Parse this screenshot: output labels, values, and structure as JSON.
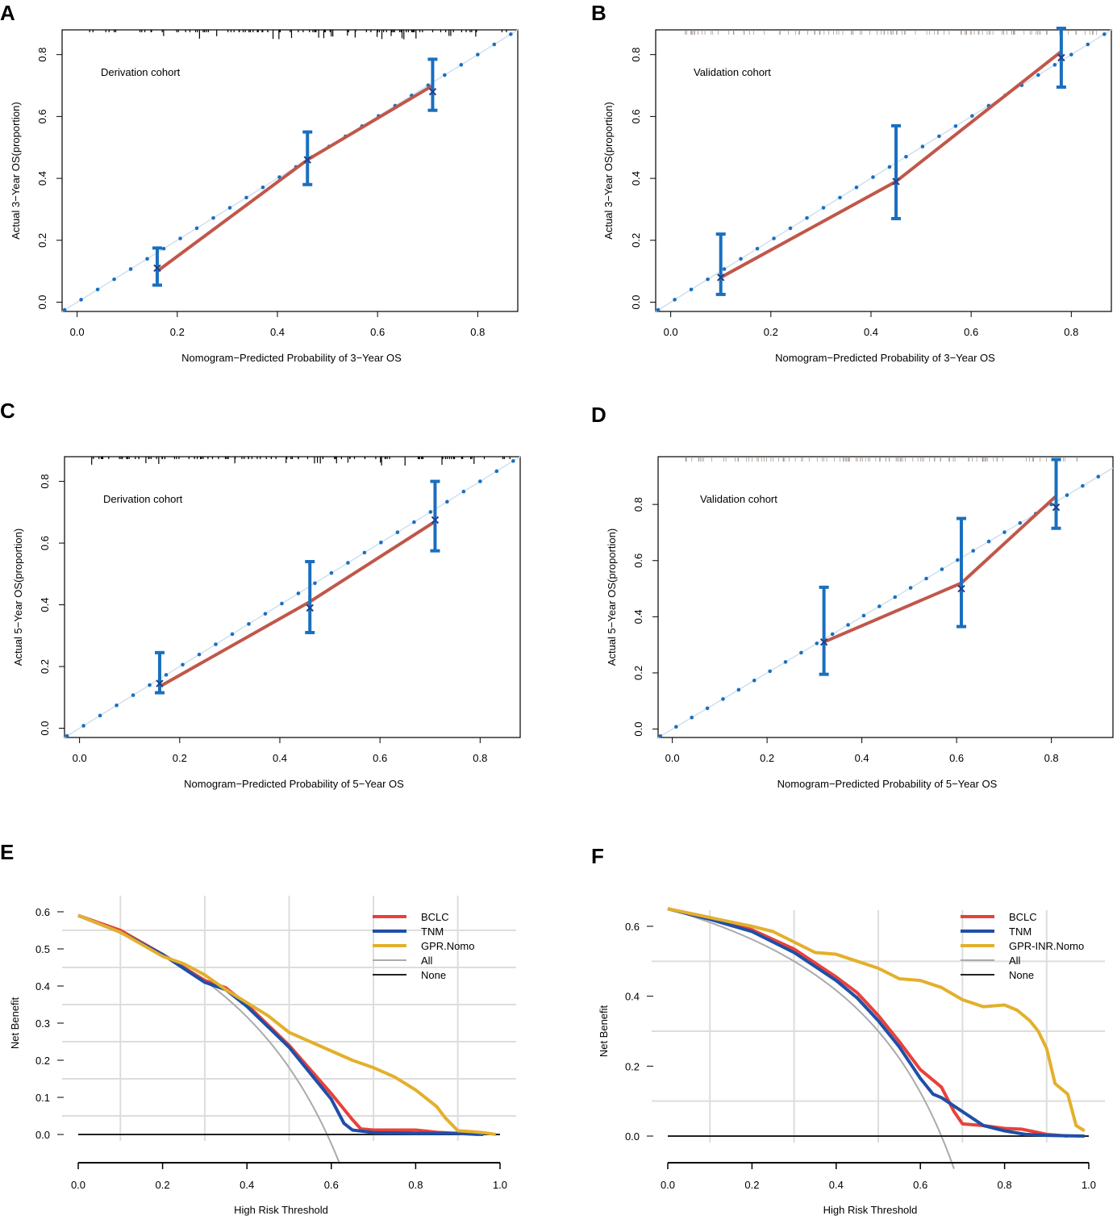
{
  "figure": {
    "panel_letters": [
      "A",
      "B",
      "C",
      "D",
      "E",
      "F"
    ]
  },
  "chart_data": [
    {
      "panel": "A",
      "type": "scatter",
      "subtype": "calibration",
      "annotation": "Derivation cohort",
      "xlabel": "Nomogram−Predicted Probability of 3−Year OS",
      "ylabel": "Actual 3−Year OS(proportion)",
      "xlim": [
        -0.03,
        0.88
      ],
      "ylim": [
        -0.03,
        0.88
      ],
      "xticks": [
        0.0,
        0.2,
        0.4,
        0.6,
        0.8
      ],
      "xtick_labels": [
        "0.0",
        "0.2",
        "0.4",
        "0.6",
        "0.8"
      ],
      "yticks": [
        0.0,
        0.2,
        0.4,
        0.6,
        0.8
      ],
      "ytick_labels": [
        "0.0",
        "0.2",
        "0.4",
        "0.6",
        "0.8"
      ],
      "ideal_line": {
        "from": [
          -0.03,
          -0.03
        ],
        "to": [
          0.88,
          0.88
        ]
      },
      "points": [
        {
          "x": 0.16,
          "y": 0.11,
          "lower": 0.055,
          "upper": 0.175
        },
        {
          "x": 0.46,
          "y": 0.46,
          "lower": 0.38,
          "upper": 0.55
        },
        {
          "x": 0.71,
          "y": 0.68,
          "lower": 0.62,
          "upper": 0.785
        }
      ],
      "apparent_line": [
        [
          0.16,
          0.1
        ],
        [
          0.46,
          0.46
        ],
        [
          0.71,
          0.7
        ]
      ],
      "rug": "black"
    },
    {
      "panel": "B",
      "type": "scatter",
      "subtype": "calibration",
      "annotation": "Validation cohort",
      "xlabel": "Nomogram−Predicted Probability of 3−Year OS",
      "ylabel": "Actual 3−Year OS(proportion)",
      "xlim": [
        -0.03,
        0.88
      ],
      "ylim": [
        -0.03,
        0.88
      ],
      "xticks": [
        0.0,
        0.2,
        0.4,
        0.6,
        0.8
      ],
      "xtick_labels": [
        "0.0",
        "0.2",
        "0.4",
        "0.6",
        "0.8"
      ],
      "yticks": [
        0.0,
        0.2,
        0.4,
        0.6,
        0.8
      ],
      "ytick_labels": [
        "0.0",
        "0.2",
        "0.4",
        "0.6",
        "0.8"
      ],
      "ideal_line": {
        "from": [
          -0.03,
          -0.03
        ],
        "to": [
          0.88,
          0.88
        ]
      },
      "points": [
        {
          "x": 0.1,
          "y": 0.08,
          "lower": 0.025,
          "upper": 0.22
        },
        {
          "x": 0.45,
          "y": 0.39,
          "lower": 0.27,
          "upper": 0.57
        },
        {
          "x": 0.78,
          "y": 0.79,
          "lower": 0.695,
          "upper": 0.885
        }
      ],
      "apparent_line": [
        [
          0.1,
          0.08
        ],
        [
          0.45,
          0.39
        ],
        [
          0.78,
          0.81
        ]
      ],
      "rug": "gray"
    },
    {
      "panel": "C",
      "type": "scatter",
      "subtype": "calibration",
      "annotation": "Derivation cohort",
      "xlabel": "Nomogram−Predicted Probability of 5−Year OS",
      "ylabel": "Actual 5−Year OS(proportion)",
      "xlim": [
        -0.03,
        0.88
      ],
      "ylim": [
        -0.03,
        0.88
      ],
      "xticks": [
        0.0,
        0.2,
        0.4,
        0.6,
        0.8
      ],
      "xtick_labels": [
        "0.0",
        "0.2",
        "0.4",
        "0.6",
        "0.8"
      ],
      "yticks": [
        0.0,
        0.2,
        0.4,
        0.6,
        0.8
      ],
      "ytick_labels": [
        "0.0",
        "0.2",
        "0.4",
        "0.6",
        "0.8"
      ],
      "ideal_line": {
        "from": [
          -0.03,
          -0.03
        ],
        "to": [
          0.88,
          0.88
        ]
      },
      "points": [
        {
          "x": 0.16,
          "y": 0.145,
          "lower": 0.115,
          "upper": 0.245
        },
        {
          "x": 0.46,
          "y": 0.39,
          "lower": 0.31,
          "upper": 0.54
        },
        {
          "x": 0.71,
          "y": 0.675,
          "lower": 0.575,
          "upper": 0.8
        }
      ],
      "apparent_line": [
        [
          0.16,
          0.135
        ],
        [
          0.46,
          0.41
        ],
        [
          0.71,
          0.67
        ]
      ],
      "rug": "black"
    },
    {
      "panel": "D",
      "type": "scatter",
      "subtype": "calibration",
      "annotation": "Validation cohort",
      "xlabel": "Nomogram−Predicted Probability of 5−Year OS",
      "ylabel": "Actual 5−Year OS(proportion)",
      "xlim": [
        -0.03,
        0.93
      ],
      "ylim": [
        -0.03,
        0.97
      ],
      "xticks": [
        0.0,
        0.2,
        0.4,
        0.6,
        0.8
      ],
      "xtick_labels": [
        "0.0",
        "0.2",
        "0.4",
        "0.6",
        "0.8"
      ],
      "yticks": [
        0.0,
        0.2,
        0.4,
        0.6,
        0.8
      ],
      "ytick_labels": [
        "0.0",
        "0.2",
        "0.4",
        "0.6",
        "0.8"
      ],
      "ideal_line": {
        "from": [
          -0.03,
          -0.03
        ],
        "to": [
          0.93,
          0.93
        ]
      },
      "points": [
        {
          "x": 0.32,
          "y": 0.31,
          "lower": 0.195,
          "upper": 0.505
        },
        {
          "x": 0.61,
          "y": 0.5,
          "lower": 0.365,
          "upper": 0.75
        },
        {
          "x": 0.81,
          "y": 0.79,
          "lower": 0.715,
          "upper": 0.96
        }
      ],
      "apparent_line": [
        [
          0.32,
          0.31
        ],
        [
          0.61,
          0.52
        ],
        [
          0.81,
          0.83
        ]
      ],
      "rug": "gray"
    },
    {
      "panel": "E",
      "type": "line",
      "subtype": "decision_curve",
      "xlabel": "High Risk Threshold",
      "ylabel": "Net Benefit",
      "xlim": [
        0,
        1
      ],
      "ylim": [
        0,
        0.6
      ],
      "xticks": [
        0.0,
        0.2,
        0.4,
        0.6,
        0.8,
        1.0
      ],
      "xtick_labels": [
        "0.0",
        "0.2",
        "0.4",
        "0.6",
        "0.8",
        "1.0"
      ],
      "yticks": [
        0.0,
        0.1,
        0.2,
        0.3,
        0.4,
        0.5,
        0.6
      ],
      "ytick_labels": [
        "0.0",
        "0.1",
        "0.2",
        "0.3",
        "0.4",
        "0.5",
        "0.6"
      ],
      "legend_position": "top-right",
      "legend": [
        "BCLC",
        "TNM",
        "GPR.Nomo",
        "All",
        "None"
      ],
      "colors": {
        "BCLC": "#e8413a",
        "TNM": "#1f4fa8",
        "GPR.Nomo": "#e3b02c",
        "All": "#aaaaaa",
        "None": "#222222"
      },
      "series": [
        {
          "name": "All",
          "prevalence": 0.59,
          "x_end": 0.62
        },
        {
          "name": "None",
          "x": [
            0,
            1
          ],
          "y": [
            0,
            0
          ]
        },
        {
          "name": "BCLC",
          "x": [
            0,
            0.1,
            0.2,
            0.3,
            0.35,
            0.4,
            0.45,
            0.5,
            0.55,
            0.6,
            0.65,
            0.67,
            0.7,
            0.8,
            0.85,
            0.88,
            0.95
          ],
          "y": [
            0.59,
            0.55,
            0.485,
            0.415,
            0.395,
            0.35,
            0.295,
            0.24,
            0.175,
            0.11,
            0.04,
            0.015,
            0.012,
            0.012,
            0.006,
            0.004,
            0.0
          ]
        },
        {
          "name": "TNM",
          "x": [
            0,
            0.1,
            0.2,
            0.3,
            0.35,
            0.4,
            0.45,
            0.5,
            0.55,
            0.6,
            0.63,
            0.65,
            0.7,
            0.8,
            0.9,
            0.96
          ],
          "y": [
            0.59,
            0.545,
            0.485,
            0.41,
            0.39,
            0.345,
            0.29,
            0.235,
            0.165,
            0.095,
            0.03,
            0.012,
            0.005,
            0.003,
            0.003,
            0.0
          ]
        },
        {
          "name": "GPR.Nomo",
          "x": [
            0,
            0.1,
            0.2,
            0.25,
            0.3,
            0.35,
            0.4,
            0.45,
            0.5,
            0.55,
            0.6,
            0.65,
            0.7,
            0.75,
            0.8,
            0.85,
            0.87,
            0.9,
            0.93,
            0.96,
            0.99
          ],
          "y": [
            0.59,
            0.545,
            0.48,
            0.46,
            0.43,
            0.39,
            0.355,
            0.32,
            0.275,
            0.25,
            0.225,
            0.2,
            0.18,
            0.155,
            0.12,
            0.075,
            0.045,
            0.01,
            0.008,
            0.005,
            0.0
          ]
        }
      ]
    },
    {
      "panel": "F",
      "type": "line",
      "subtype": "decision_curve",
      "xlabel": "High Risk Threshold",
      "ylabel": "Net Benefit",
      "xlim": [
        0,
        1
      ],
      "ylim": [
        0,
        0.65
      ],
      "xticks": [
        0.0,
        0.2,
        0.4,
        0.6,
        0.8,
        1.0
      ],
      "xtick_labels": [
        "0.0",
        "0.2",
        "0.4",
        "0.6",
        "0.8",
        "1.0"
      ],
      "yticks": [
        0.0,
        0.2,
        0.4,
        0.6
      ],
      "ytick_labels": [
        "0.0",
        "0.2",
        "0.4",
        "0.6"
      ],
      "legend_position": "top-right",
      "legend": [
        "BCLC",
        "TNM",
        "GPR-INR.Nomo",
        "All",
        "None"
      ],
      "colors": {
        "BCLC": "#e8413a",
        "TNM": "#1f4fa8",
        "GPR-INR.Nomo": "#e3b02c",
        "All": "#aaaaaa",
        "None": "#222222"
      },
      "series": [
        {
          "name": "All",
          "prevalence": 0.65,
          "x_end": 0.68
        },
        {
          "name": "None",
          "x": [
            0,
            1
          ],
          "y": [
            0,
            0
          ]
        },
        {
          "name": "BCLC",
          "x": [
            0,
            0.1,
            0.2,
            0.3,
            0.4,
            0.45,
            0.5,
            0.55,
            0.6,
            0.65,
            0.68,
            0.7,
            0.75,
            0.8,
            0.84,
            0.9,
            0.95
          ],
          "y": [
            0.65,
            0.625,
            0.59,
            0.535,
            0.455,
            0.41,
            0.345,
            0.27,
            0.19,
            0.14,
            0.07,
            0.035,
            0.03,
            0.022,
            0.02,
            0.005,
            0.0
          ]
        },
        {
          "name": "TNM",
          "x": [
            0,
            0.1,
            0.2,
            0.3,
            0.4,
            0.45,
            0.5,
            0.55,
            0.6,
            0.63,
            0.65,
            0.7,
            0.75,
            0.8,
            0.85,
            0.9,
            0.99
          ],
          "y": [
            0.65,
            0.62,
            0.585,
            0.525,
            0.445,
            0.395,
            0.33,
            0.255,
            0.165,
            0.12,
            0.11,
            0.07,
            0.03,
            0.015,
            0.005,
            0.002,
            0.0
          ]
        },
        {
          "name": "GPR-INR.Nomo",
          "x": [
            0,
            0.1,
            0.2,
            0.25,
            0.3,
            0.35,
            0.4,
            0.45,
            0.5,
            0.55,
            0.6,
            0.65,
            0.7,
            0.75,
            0.8,
            0.83,
            0.86,
            0.88,
            0.9,
            0.92,
            0.95,
            0.97,
            0.99
          ],
          "y": [
            0.65,
            0.625,
            0.6,
            0.585,
            0.555,
            0.525,
            0.52,
            0.5,
            0.48,
            0.45,
            0.445,
            0.425,
            0.39,
            0.37,
            0.375,
            0.36,
            0.33,
            0.3,
            0.25,
            0.15,
            0.12,
            0.03,
            0.015
          ]
        }
      ]
    }
  ]
}
